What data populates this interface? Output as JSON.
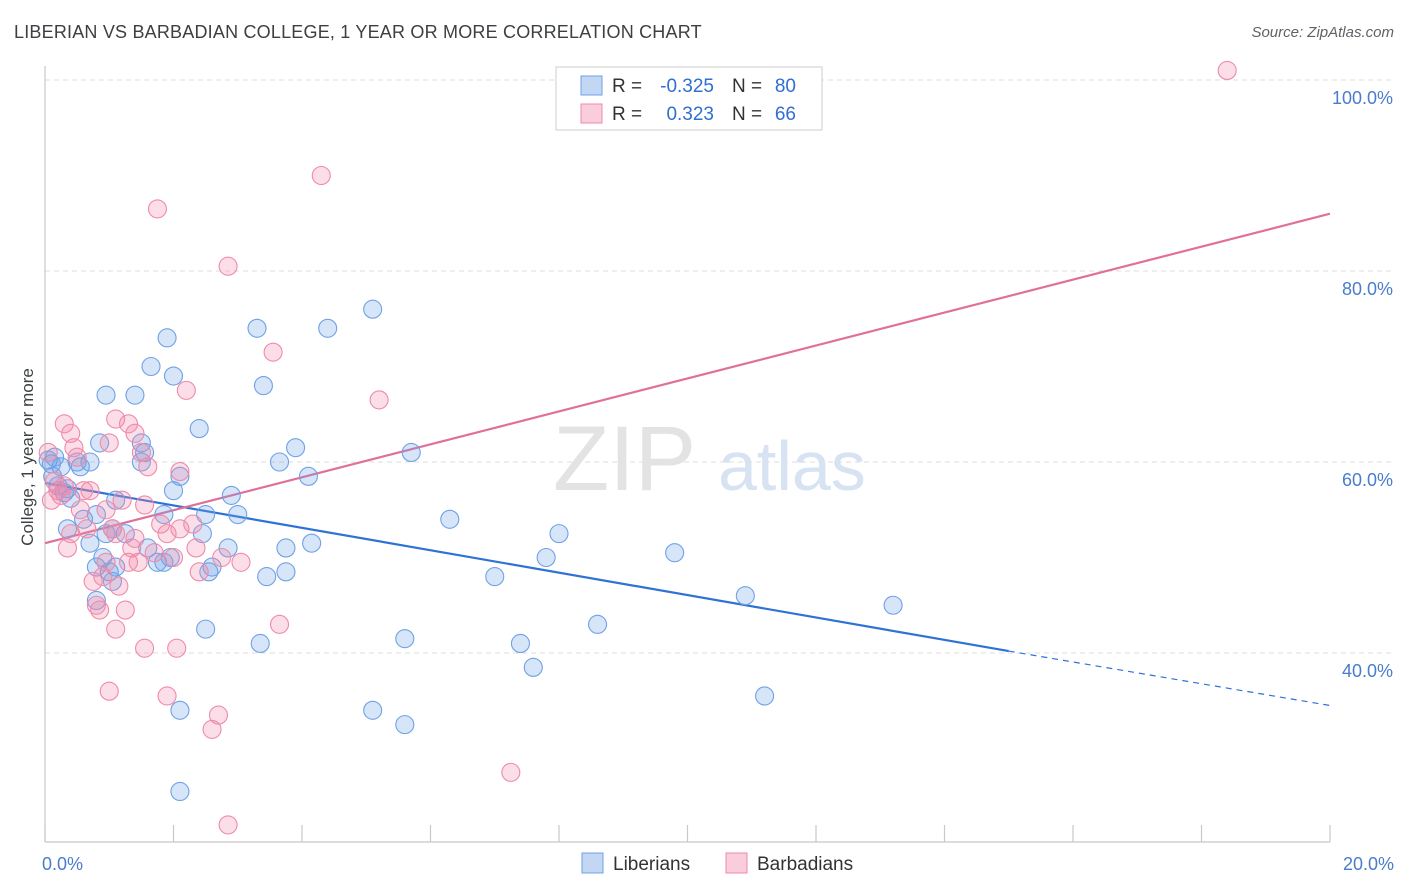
{
  "title": "LIBERIAN VS BARBADIAN COLLEGE, 1 YEAR OR MORE CORRELATION CHART",
  "source": "Source: ZipAtlas.com",
  "watermark": {
    "zip": "ZIP",
    "atlas": "atlas"
  },
  "legend": {
    "r_label": "R =",
    "n_label": "N =",
    "rows": [
      {
        "r_value": "-0.325",
        "n_value": "80",
        "color": "#6fa1e6"
      },
      {
        "r_value": "0.323",
        "n_value": "66",
        "color": "#f08aaa"
      }
    ]
  },
  "bottom_legend": [
    "Liberians",
    "Barbadians"
  ],
  "chart_data": {
    "type": "scatter",
    "title": "LIBERIAN VS BARBADIAN COLLEGE, 1 YEAR OR MORE CORRELATION CHART",
    "xlabel": "",
    "ylabel": "College, 1 year or more",
    "xlim": [
      0,
      20
    ],
    "ylim": [
      20,
      102
    ],
    "x_ticks": [
      "0.0%",
      "20.0%"
    ],
    "y_ticks": [
      {
        "value": 40,
        "label": "40.0%"
      },
      {
        "value": 60,
        "label": "60.0%"
      },
      {
        "value": 80,
        "label": "80.0%"
      },
      {
        "value": 100,
        "label": "100.0%"
      }
    ],
    "grid": true,
    "legend_position": "top-center",
    "series": [
      {
        "name": "Liberians",
        "color": "#6fa1e6",
        "line_color": "#2f72d6",
        "r": -0.325,
        "n": 80,
        "trend": {
          "x0": 0,
          "y0": 57.8,
          "x1": 15,
          "y1": 40.2,
          "dash_x1": 20,
          "dash_y1": 34.5
        },
        "points": [
          [
            0.05,
            60.2
          ],
          [
            0.1,
            59.8
          ],
          [
            0.12,
            58.5
          ],
          [
            0.15,
            60.5
          ],
          [
            0.2,
            57.5
          ],
          [
            0.25,
            59.5
          ],
          [
            0.3,
            56.8
          ],
          [
            0.35,
            57.2
          ],
          [
            0.4,
            56.2
          ],
          [
            0.5,
            60
          ],
          [
            0.55,
            59.5
          ],
          [
            0.7,
            60
          ],
          [
            0.35,
            53
          ],
          [
            0.6,
            54
          ],
          [
            0.7,
            51.5
          ],
          [
            0.8,
            54.5
          ],
          [
            0.9,
            50
          ],
          [
            0.85,
            62
          ],
          [
            0.95,
            52.5
          ],
          [
            1.05,
            53
          ],
          [
            1.1,
            56
          ],
          [
            1.25,
            52.5
          ],
          [
            1.0,
            48.5
          ],
          [
            1.1,
            49
          ],
          [
            1.05,
            47.5
          ],
          [
            0.8,
            49
          ],
          [
            0.8,
            45.5
          ],
          [
            0.95,
            67
          ],
          [
            1.5,
            62
          ],
          [
            1.55,
            61
          ],
          [
            1.5,
            60
          ],
          [
            1.4,
            67
          ],
          [
            1.6,
            51
          ],
          [
            1.85,
            49.5
          ],
          [
            1.95,
            50
          ],
          [
            1.75,
            49.5
          ],
          [
            1.85,
            54.5
          ],
          [
            2.0,
            57
          ],
          [
            2.0,
            69
          ],
          [
            1.9,
            73
          ],
          [
            1.65,
            70
          ],
          [
            2.1,
            58.5
          ],
          [
            2.4,
            63.5
          ],
          [
            2.45,
            52.5
          ],
          [
            2.5,
            54.5
          ],
          [
            2.55,
            48.5
          ],
          [
            2.6,
            49
          ],
          [
            2.85,
            51
          ],
          [
            2.9,
            56.5
          ],
          [
            3.0,
            54.5
          ],
          [
            3.3,
            74
          ],
          [
            3.4,
            68
          ],
          [
            3.35,
            41
          ],
          [
            3.45,
            48
          ],
          [
            3.65,
            60
          ],
          [
            3.75,
            48.5
          ],
          [
            3.75,
            51
          ],
          [
            3.9,
            61.5
          ],
          [
            4.1,
            58.5
          ],
          [
            4.15,
            51.5
          ],
          [
            4.4,
            74
          ],
          [
            5.1,
            76
          ],
          [
            5.1,
            34
          ],
          [
            5.6,
            32.5
          ],
          [
            5.6,
            41.5
          ],
          [
            5.7,
            61
          ],
          [
            6.3,
            54
          ],
          [
            7.0,
            48
          ],
          [
            7.4,
            41
          ],
          [
            7.6,
            38.5
          ],
          [
            7.8,
            50
          ],
          [
            8.0,
            52.5
          ],
          [
            8.6,
            43
          ],
          [
            9.8,
            50.5
          ],
          [
            10.9,
            46
          ],
          [
            11.2,
            35.5
          ],
          [
            13.2,
            45
          ],
          [
            2.5,
            42.5
          ],
          [
            2.1,
            25.5
          ],
          [
            2.1,
            34
          ]
        ]
      },
      {
        "name": "Barbadians",
        "color": "#f08aaa",
        "line_color": "#e0709a",
        "r": 0.323,
        "n": 66,
        "trend": {
          "x0": 0,
          "y0": 51.5,
          "x1": 20,
          "y1": 86.0
        },
        "points": [
          [
            0.05,
            61
          ],
          [
            0.1,
            56
          ],
          [
            0.15,
            58
          ],
          [
            0.2,
            57
          ],
          [
            0.25,
            56.5
          ],
          [
            0.3,
            57.5
          ],
          [
            0.35,
            51
          ],
          [
            0.4,
            52.5
          ],
          [
            0.45,
            61.5
          ],
          [
            0.5,
            60.5
          ],
          [
            0.55,
            55
          ],
          [
            0.6,
            57
          ],
          [
            0.65,
            53
          ],
          [
            0.7,
            57
          ],
          [
            0.75,
            47.5
          ],
          [
            0.8,
            45
          ],
          [
            0.85,
            44.5
          ],
          [
            0.9,
            48
          ],
          [
            0.95,
            49.5
          ],
          [
            0.95,
            55
          ],
          [
            1.05,
            53
          ],
          [
            1.1,
            52.5
          ],
          [
            1.15,
            47
          ],
          [
            1.2,
            56
          ],
          [
            1.25,
            44.5
          ],
          [
            1.3,
            49.5
          ],
          [
            1.35,
            51
          ],
          [
            1.4,
            52
          ],
          [
            1.45,
            49.5
          ],
          [
            1.55,
            55.5
          ],
          [
            1.6,
            59.5
          ],
          [
            1.7,
            50.5
          ],
          [
            1.8,
            53.5
          ],
          [
            1.9,
            52.5
          ],
          [
            2.0,
            50
          ],
          [
            2.1,
            59
          ],
          [
            2.2,
            67.5
          ],
          [
            2.3,
            53.5
          ],
          [
            2.4,
            48.5
          ],
          [
            1.0,
            62
          ],
          [
            1.1,
            64.5
          ],
          [
            1.3,
            64
          ],
          [
            1.4,
            63
          ],
          [
            1.5,
            61
          ],
          [
            1.75,
            86.5
          ],
          [
            2.85,
            80.5
          ],
          [
            3.55,
            71.5
          ],
          [
            4.3,
            90
          ],
          [
            5.2,
            66.5
          ],
          [
            2.85,
            22
          ],
          [
            2.6,
            32
          ],
          [
            2.7,
            33.5
          ],
          [
            1.0,
            36
          ],
          [
            1.9,
            35.5
          ],
          [
            1.55,
            40.5
          ],
          [
            2.05,
            40.5
          ],
          [
            1.1,
            42.5
          ],
          [
            3.65,
            43
          ],
          [
            2.1,
            53
          ],
          [
            0.4,
            63
          ],
          [
            0.3,
            64
          ],
          [
            2.35,
            51
          ],
          [
            2.75,
            50
          ],
          [
            3.05,
            49.5
          ],
          [
            7.25,
            27.5
          ],
          [
            18.4,
            101
          ]
        ]
      }
    ]
  }
}
